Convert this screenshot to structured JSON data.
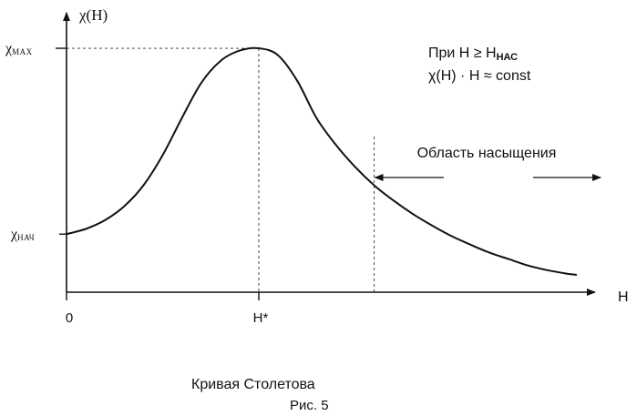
{
  "chart_data": {
    "type": "line",
    "title": "",
    "xlabel": "H",
    "ylabel": "χ(H)",
    "x_ticks": [
      {
        "label": "0",
        "x": 0
      },
      {
        "label": "H*",
        "x": 1
      }
    ],
    "y_ticks": [
      {
        "label": "χ",
        "sub": "НАЧ",
        "y": 1
      },
      {
        "label": "χ",
        "sub": "MAX",
        "y": 4.2
      }
    ],
    "ylim": [
      0,
      4.6
    ],
    "xlim": [
      0,
      2.75
    ],
    "series": [
      {
        "values_description": "",
        "x": [
          0,
          0.1,
          0.2,
          0.3,
          0.4,
          0.5,
          0.6,
          0.7,
          0.8,
          0.9,
          1.0,
          1.1,
          1.2,
          1.3,
          1.4,
          1.5,
          1.6,
          1.7,
          1.8,
          1.9,
          2.0,
          2.1,
          2.2,
          2.3,
          2.4,
          2.5,
          2.6,
          2.65
        ],
        "y": [
          1.0,
          1.09,
          1.24,
          1.48,
          1.84,
          2.36,
          3.0,
          3.6,
          3.98,
          4.16,
          4.2,
          4.08,
          3.64,
          3.0,
          2.54,
          2.16,
          1.84,
          1.58,
          1.35,
          1.15,
          0.97,
          0.82,
          0.68,
          0.57,
          0.46,
          0.38,
          0.32,
          0.3
        ]
      }
    ],
    "saturation_start_x": 1.6,
    "saturation_label": "Область насыщения",
    "annotation_line1_prefix": "При H ≥ H",
    "annotation_line1_sub": "НАС",
    "annotation_line2": "χ(H) · H ≈ const",
    "caption": "Кривая Столетова",
    "figure_label": "Рис. 5"
  }
}
